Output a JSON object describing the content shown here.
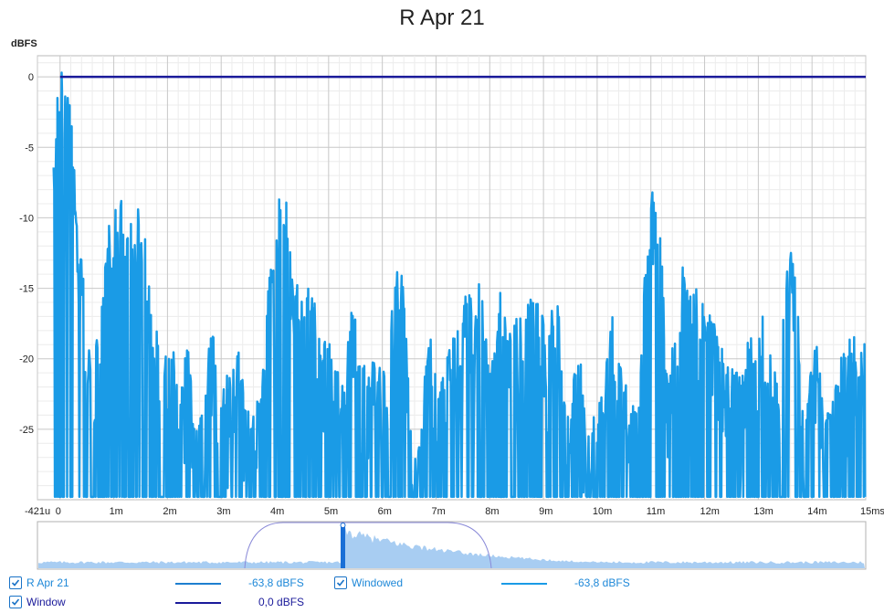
{
  "chart_data": {
    "type": "line",
    "title": "R Apr 21",
    "ylabel": "dBFS",
    "ylim": [
      -30,
      1.5
    ],
    "xlim": [
      -0.421,
      15
    ],
    "yticks": [
      "0",
      "-5",
      "-10",
      "-15",
      "-20",
      "-25"
    ],
    "ytick_values": [
      0,
      -5,
      -10,
      -15,
      -20,
      -25
    ],
    "xticks": [
      "-421u",
      "0",
      "1m",
      "2m",
      "3m",
      "4m",
      "5m",
      "6m",
      "7m",
      "8m",
      "9m",
      "10m",
      "11m",
      "12m",
      "13m",
      "14m",
      "15ms"
    ],
    "xtick_values": [
      -0.421,
      0,
      1,
      2,
      3,
      4,
      5,
      6,
      7,
      8,
      9,
      10,
      11,
      12,
      13,
      14,
      15
    ],
    "grid": true,
    "colors": {
      "response": "#1a9be6",
      "window": "#1a1a9a",
      "overview_fill": "#a8cdf2",
      "overview_marker": "#1a6fd6"
    },
    "series": [
      {
        "name": "Windowed",
        "peaks_x_ms": [
          -0.05,
          0.03,
          0.1,
          0.2,
          0.32,
          0.45,
          0.65,
          0.9,
          1.1,
          1.28,
          1.5,
          1.75,
          2.05,
          2.35,
          2.85,
          3.3,
          3.95,
          4.15,
          4.4,
          5.0,
          5.45,
          5.75,
          6.3,
          6.9,
          7.6,
          7.8,
          8.2,
          8.6,
          9.2,
          9.65,
          10.3,
          10.95,
          11.05,
          11.6,
          12.3,
          12.85,
          13.1,
          13.6,
          14.05,
          14.5,
          14.9
        ],
        "peaks_y_dbfs": [
          -13,
          0.3,
          -0.5,
          -12.5,
          -11.5,
          -16.8,
          -18.4,
          -10.5,
          -8.3,
          -9.8,
          -8.5,
          -17.5,
          -18.3,
          -19.2,
          -17.8,
          -19.0,
          -13.5,
          -7.6,
          -14.4,
          -18.4,
          -16.5,
          -19.4,
          -13.3,
          -18.6,
          -14.8,
          -14.7,
          -15.2,
          -18.0,
          -15.2,
          -19.8,
          -16.3,
          -17.4,
          -7.9,
          -13.5,
          -19.2,
          -17.5,
          -16.9,
          -12.3,
          -18.7,
          -20.4,
          -21.2
        ]
      },
      {
        "name": "Window",
        "y_dbfs": 0
      }
    ]
  },
  "legend": [
    {
      "label": "R Apr 21",
      "checked": true,
      "value": "-63,8 dBFS"
    },
    {
      "label": "Windowed",
      "checked": true,
      "value": "-63,8 dBFS"
    },
    {
      "label": "Window",
      "checked": true,
      "value": "0,0 dBFS"
    }
  ]
}
